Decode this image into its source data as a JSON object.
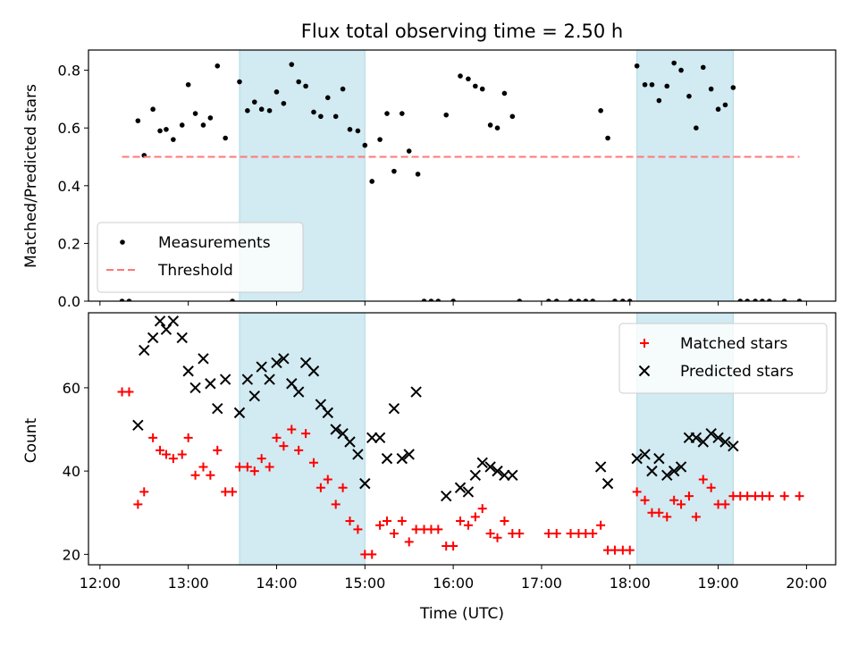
{
  "chart_data": [
    {
      "type": "scatter",
      "title": "Flux total observing time = 2.50 h",
      "xlabel": "",
      "ylabel": "Matched/Predicted stars",
      "xlim": [
        11.87,
        20.33
      ],
      "ylim": [
        0,
        0.87
      ],
      "yticks": [
        0.0,
        0.2,
        0.4,
        0.6,
        0.8
      ],
      "ytick_labels": [
        "0.0",
        "0.2",
        "0.4",
        "0.6",
        "0.8"
      ],
      "legend_position": "lower-left",
      "shaded_intervals": [
        [
          13.58,
          15.0
        ],
        [
          18.08,
          19.17
        ]
      ],
      "shade_color": "#add8e6",
      "series": [
        {
          "name": "Measurements",
          "marker": "dot",
          "color": "#000000",
          "points": [
            [
              12.25,
              0
            ],
            [
              12.33,
              0
            ],
            [
              12.43,
              0.625
            ],
            [
              12.5,
              0.505
            ],
            [
              12.6,
              0.665
            ],
            [
              12.68,
              0.59
            ],
            [
              12.75,
              0.595
            ],
            [
              12.83,
              0.56
            ],
            [
              12.93,
              0.61
            ],
            [
              13.0,
              0.75
            ],
            [
              13.08,
              0.65
            ],
            [
              13.17,
              0.61
            ],
            [
              13.25,
              0.635
            ],
            [
              13.33,
              0.815
            ],
            [
              13.42,
              0.565
            ],
            [
              13.5,
              0
            ],
            [
              13.58,
              0.76
            ],
            [
              13.67,
              0.66
            ],
            [
              13.75,
              0.69
            ],
            [
              13.83,
              0.665
            ],
            [
              13.92,
              0.66
            ],
            [
              14.0,
              0.725
            ],
            [
              14.08,
              0.685
            ],
            [
              14.17,
              0.82
            ],
            [
              14.25,
              0.76
            ],
            [
              14.33,
              0.745
            ],
            [
              14.42,
              0.655
            ],
            [
              14.5,
              0.64
            ],
            [
              14.58,
              0.705
            ],
            [
              14.67,
              0.64
            ],
            [
              14.75,
              0.735
            ],
            [
              14.83,
              0.595
            ],
            [
              14.92,
              0.59
            ],
            [
              15.0,
              0.54
            ],
            [
              15.08,
              0.415
            ],
            [
              15.17,
              0.56
            ],
            [
              15.25,
              0.65
            ],
            [
              15.33,
              0.45
            ],
            [
              15.42,
              0.65
            ],
            [
              15.5,
              0.52
            ],
            [
              15.6,
              0.44
            ],
            [
              15.67,
              0
            ],
            [
              15.75,
              0
            ],
            [
              15.83,
              0
            ],
            [
              15.92,
              0.645
            ],
            [
              16.0,
              0
            ],
            [
              16.08,
              0.78
            ],
            [
              16.17,
              0.77
            ],
            [
              16.25,
              0.745
            ],
            [
              16.33,
              0.735
            ],
            [
              16.42,
              0.61
            ],
            [
              16.5,
              0.6
            ],
            [
              16.58,
              0.72
            ],
            [
              16.67,
              0.64
            ],
            [
              16.75,
              0
            ],
            [
              17.08,
              0
            ],
            [
              17.17,
              0
            ],
            [
              17.33,
              0
            ],
            [
              17.42,
              0
            ],
            [
              17.5,
              0
            ],
            [
              17.58,
              0
            ],
            [
              17.67,
              0.66
            ],
            [
              17.75,
              0.565
            ],
            [
              17.83,
              0
            ],
            [
              17.92,
              0
            ],
            [
              18.0,
              0
            ],
            [
              18.08,
              0.815
            ],
            [
              18.17,
              0.75
            ],
            [
              18.25,
              0.75
            ],
            [
              18.33,
              0.695
            ],
            [
              18.42,
              0.745
            ],
            [
              18.5,
              0.825
            ],
            [
              18.58,
              0.8
            ],
            [
              18.67,
              0.71
            ],
            [
              18.75,
              0.6
            ],
            [
              18.83,
              0.81
            ],
            [
              18.92,
              0.735
            ],
            [
              19.0,
              0.665
            ],
            [
              19.08,
              0.68
            ],
            [
              19.17,
              0.74
            ],
            [
              19.25,
              0
            ],
            [
              19.33,
              0
            ],
            [
              19.42,
              0
            ],
            [
              19.5,
              0
            ],
            [
              19.58,
              0
            ],
            [
              19.75,
              0
            ],
            [
              19.92,
              0
            ]
          ]
        },
        {
          "name": "Threshold",
          "marker": "dashed-line",
          "color": "#ff7777",
          "points": [
            [
              12.25,
              0.5
            ],
            [
              19.92,
              0.5
            ]
          ]
        }
      ]
    },
    {
      "type": "scatter",
      "title": "",
      "xlabel": "Time (UTC)",
      "ylabel": "Count",
      "xlim": [
        11.87,
        20.33
      ],
      "ylim": [
        17.5,
        78
      ],
      "yticks": [
        20,
        40,
        60
      ],
      "ytick_labels": [
        "20",
        "40",
        "60"
      ],
      "xticks": [
        12,
        13,
        14,
        15,
        16,
        17,
        18,
        19,
        20
      ],
      "xtick_labels": [
        "12:00",
        "13:00",
        "14:00",
        "15:00",
        "16:00",
        "17:00",
        "18:00",
        "19:00",
        "20:00"
      ],
      "legend_position": "upper-right",
      "shaded_intervals": [
        [
          13.58,
          15.0
        ],
        [
          18.08,
          19.17
        ]
      ],
      "shade_color": "#add8e6",
      "series": [
        {
          "name": "Matched stars",
          "marker": "plus",
          "color": "#ff0000",
          "points": [
            [
              12.25,
              59
            ],
            [
              12.33,
              59
            ],
            [
              12.43,
              32
            ],
            [
              12.5,
              35
            ],
            [
              12.6,
              48
            ],
            [
              12.68,
              45
            ],
            [
              12.75,
              44
            ],
            [
              12.83,
              43
            ],
            [
              12.93,
              44
            ],
            [
              13.0,
              48
            ],
            [
              13.08,
              39
            ],
            [
              13.17,
              41
            ],
            [
              13.25,
              39
            ],
            [
              13.33,
              45
            ],
            [
              13.42,
              35
            ],
            [
              13.5,
              35
            ],
            [
              13.58,
              41
            ],
            [
              13.67,
              41
            ],
            [
              13.75,
              40
            ],
            [
              13.83,
              43
            ],
            [
              13.92,
              41
            ],
            [
              14.0,
              48
            ],
            [
              14.08,
              46
            ],
            [
              14.17,
              50
            ],
            [
              14.25,
              45
            ],
            [
              14.33,
              49
            ],
            [
              14.42,
              42
            ],
            [
              14.5,
              36
            ],
            [
              14.58,
              38
            ],
            [
              14.67,
              32
            ],
            [
              14.75,
              36
            ],
            [
              14.83,
              28
            ],
            [
              14.92,
              26
            ],
            [
              15.0,
              20
            ],
            [
              15.08,
              20
            ],
            [
              15.17,
              27
            ],
            [
              15.25,
              28
            ],
            [
              15.33,
              25
            ],
            [
              15.42,
              28
            ],
            [
              15.5,
              23
            ],
            [
              15.58,
              26
            ],
            [
              15.67,
              26
            ],
            [
              15.75,
              26
            ],
            [
              15.83,
              26
            ],
            [
              15.92,
              22
            ],
            [
              16.0,
              22
            ],
            [
              16.08,
              28
            ],
            [
              16.17,
              27
            ],
            [
              16.25,
              29
            ],
            [
              16.33,
              31
            ],
            [
              16.42,
              25
            ],
            [
              16.5,
              24
            ],
            [
              16.58,
              28
            ],
            [
              16.67,
              25
            ],
            [
              16.75,
              25
            ],
            [
              17.08,
              25
            ],
            [
              17.17,
              25
            ],
            [
              17.33,
              25
            ],
            [
              17.42,
              25
            ],
            [
              17.5,
              25
            ],
            [
              17.58,
              25
            ],
            [
              17.67,
              27
            ],
            [
              17.75,
              21
            ],
            [
              17.83,
              21
            ],
            [
              17.92,
              21
            ],
            [
              18.0,
              21
            ],
            [
              18.08,
              35
            ],
            [
              18.17,
              33
            ],
            [
              18.25,
              30
            ],
            [
              18.33,
              30
            ],
            [
              18.42,
              29
            ],
            [
              18.5,
              33
            ],
            [
              18.58,
              32
            ],
            [
              18.67,
              34
            ],
            [
              18.75,
              29
            ],
            [
              18.83,
              38
            ],
            [
              18.92,
              36
            ],
            [
              19.0,
              32
            ],
            [
              19.08,
              32
            ],
            [
              19.17,
              34
            ],
            [
              19.25,
              34
            ],
            [
              19.33,
              34
            ],
            [
              19.42,
              34
            ],
            [
              19.5,
              34
            ],
            [
              19.58,
              34
            ],
            [
              19.75,
              34
            ],
            [
              19.92,
              34
            ]
          ]
        },
        {
          "name": "Predicted stars",
          "marker": "x",
          "color": "#000000",
          "points": [
            [
              12.43,
              51
            ],
            [
              12.5,
              69
            ],
            [
              12.6,
              72
            ],
            [
              12.68,
              76
            ],
            [
              12.75,
              74
            ],
            [
              12.83,
              76
            ],
            [
              12.93,
              72
            ],
            [
              13.0,
              64
            ],
            [
              13.08,
              60
            ],
            [
              13.17,
              67
            ],
            [
              13.25,
              61
            ],
            [
              13.33,
              55
            ],
            [
              13.42,
              62
            ],
            [
              13.58,
              54
            ],
            [
              13.67,
              62
            ],
            [
              13.75,
              58
            ],
            [
              13.83,
              65
            ],
            [
              13.92,
              62
            ],
            [
              14.0,
              66
            ],
            [
              14.08,
              67
            ],
            [
              14.17,
              61
            ],
            [
              14.25,
              59
            ],
            [
              14.33,
              66
            ],
            [
              14.42,
              64
            ],
            [
              14.5,
              56
            ],
            [
              14.58,
              54
            ],
            [
              14.67,
              50
            ],
            [
              14.75,
              49
            ],
            [
              14.83,
              47
            ],
            [
              14.92,
              44
            ],
            [
              15.0,
              37
            ],
            [
              15.08,
              48
            ],
            [
              15.17,
              48
            ],
            [
              15.25,
              43
            ],
            [
              15.33,
              55
            ],
            [
              15.42,
              43
            ],
            [
              15.5,
              44
            ],
            [
              15.58,
              59
            ],
            [
              15.92,
              34
            ],
            [
              16.08,
              36
            ],
            [
              16.17,
              35
            ],
            [
              16.25,
              39
            ],
            [
              16.33,
              42
            ],
            [
              16.42,
              41
            ],
            [
              16.5,
              40
            ],
            [
              16.58,
              39
            ],
            [
              16.67,
              39
            ],
            [
              17.67,
              41
            ],
            [
              17.75,
              37
            ],
            [
              18.08,
              43
            ],
            [
              18.17,
              44
            ],
            [
              18.25,
              40
            ],
            [
              18.33,
              43
            ],
            [
              18.42,
              39
            ],
            [
              18.5,
              40
            ],
            [
              18.58,
              41
            ],
            [
              18.67,
              48
            ],
            [
              18.75,
              48
            ],
            [
              18.83,
              47
            ],
            [
              18.92,
              49
            ],
            [
              19.0,
              48
            ],
            [
              19.08,
              47
            ],
            [
              19.17,
              46
            ]
          ]
        }
      ]
    }
  ]
}
